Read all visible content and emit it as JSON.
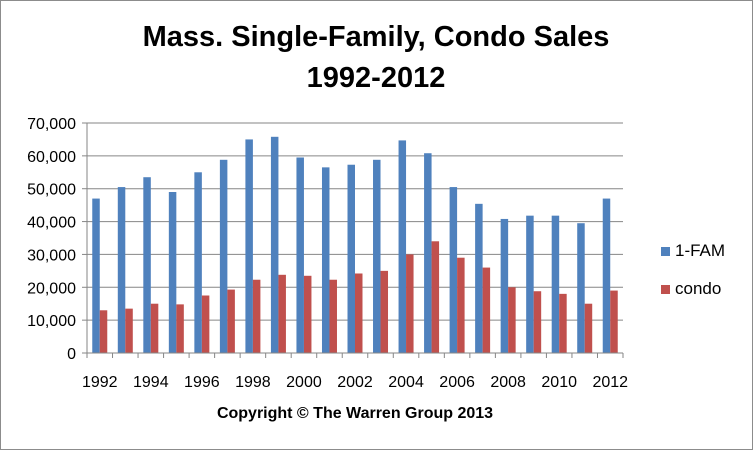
{
  "chart_data": {
    "type": "bar",
    "title": [
      "Mass. Single-Family, Condo Sales",
      "1992-2012"
    ],
    "xlabel": "Copyright © The Warren Group 2013",
    "ylabel": "",
    "ylim": [
      0,
      70000
    ],
    "yticks": [
      0,
      10000,
      20000,
      30000,
      40000,
      50000,
      60000,
      70000
    ],
    "ytick_labels": [
      "0",
      "10,000",
      "20,000",
      "30,000",
      "40,000",
      "50,000",
      "60,000",
      "70,000"
    ],
    "grid": true,
    "legend_position": "right",
    "categories": [
      "1992",
      "1993",
      "1994",
      "1995",
      "1996",
      "1997",
      "1998",
      "1999",
      "2000",
      "2001",
      "2002",
      "2003",
      "2004",
      "2005",
      "2006",
      "2007",
      "2008",
      "2009",
      "2010",
      "2011",
      "2012"
    ],
    "category_labels_shown": [
      "1992",
      "",
      "1994",
      "",
      "1996",
      "",
      "1998",
      "",
      "2000",
      "",
      "2002",
      "",
      "2004",
      "",
      "2006",
      "",
      "2008",
      "",
      "2010",
      "",
      "2012"
    ],
    "series": [
      {
        "name": "1-FAM",
        "color": "#4f81bd",
        "values": [
          47000,
          50500,
          53500,
          49000,
          55000,
          58800,
          65000,
          65800,
          59500,
          56500,
          57300,
          58800,
          64700,
          60800,
          50500,
          45400,
          40800,
          41800,
          41800,
          39500,
          47000
        ]
      },
      {
        "name": "condo",
        "color": "#c0504d",
        "values": [
          13000,
          13500,
          15000,
          14800,
          17500,
          19300,
          22300,
          23800,
          23500,
          22300,
          24200,
          25000,
          30000,
          34000,
          29000,
          26000,
          20000,
          18800,
          18000,
          15000,
          19000
        ]
      }
    ]
  }
}
